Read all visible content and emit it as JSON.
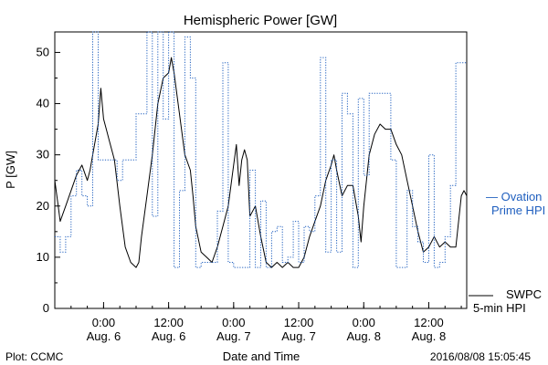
{
  "chart_data": {
    "type": "line",
    "title": "Hemispheric Power [GW]",
    "ylabel": "P [GW]",
    "xlabel": "Date and Time",
    "ylim": [
      0,
      54
    ],
    "yticks": [
      0,
      10,
      20,
      30,
      40,
      50
    ],
    "xlim": [
      "2016-08-05T15:00",
      "2016-08-08T19:00"
    ],
    "xticks": [
      {
        "at": "2016-08-06T00:00",
        "time": "0:00",
        "date": "Aug. 6"
      },
      {
        "at": "2016-08-06T12:00",
        "time": "12:00",
        "date": "Aug. 6"
      },
      {
        "at": "2016-08-07T00:00",
        "time": "0:00",
        "date": "Aug. 7"
      },
      {
        "at": "2016-08-07T12:00",
        "time": "12:00",
        "date": "Aug. 7"
      },
      {
        "at": "2016-08-08T00:00",
        "time": "0:00",
        "date": "Aug. 8"
      },
      {
        "at": "2016-08-08T12:00",
        "time": "12:00",
        "date": "Aug. 8"
      }
    ],
    "footer_left": "Plot: CCMC",
    "footer_right": "2016/08/08 15:05:45",
    "series": [
      {
        "name": "SWPC 5-min HPI",
        "legend_lines": [
          "SWPC",
          "5-min HPI"
        ],
        "color": "#000000",
        "style": "solid",
        "points": [
          [
            "2016-08-05T15:00",
            25
          ],
          [
            "2016-08-05T15:30",
            21
          ],
          [
            "2016-08-05T16:00",
            17
          ],
          [
            "2016-08-05T17:00",
            20
          ],
          [
            "2016-08-05T18:00",
            23
          ],
          [
            "2016-08-05T19:00",
            26
          ],
          [
            "2016-08-05T20:00",
            28
          ],
          [
            "2016-08-05T21:00",
            25
          ],
          [
            "2016-08-05T21:30",
            27
          ],
          [
            "2016-08-05T22:00",
            30
          ],
          [
            "2016-08-05T23:00",
            36
          ],
          [
            "2016-08-05T23:30",
            43
          ],
          [
            "2016-08-06T00:00",
            37
          ],
          [
            "2016-08-06T00:30",
            35
          ],
          [
            "2016-08-06T01:00",
            33
          ],
          [
            "2016-08-06T02:00",
            29
          ],
          [
            "2016-08-06T03:00",
            20
          ],
          [
            "2016-08-06T04:00",
            12
          ],
          [
            "2016-08-06T05:00",
            9
          ],
          [
            "2016-08-06T06:00",
            8
          ],
          [
            "2016-08-06T06:30",
            9
          ],
          [
            "2016-08-06T07:00",
            14
          ],
          [
            "2016-08-06T08:00",
            22
          ],
          [
            "2016-08-06T09:00",
            30
          ],
          [
            "2016-08-06T10:00",
            40
          ],
          [
            "2016-08-06T11:00",
            45
          ],
          [
            "2016-08-06T12:00",
            46
          ],
          [
            "2016-08-06T12:30",
            49
          ],
          [
            "2016-08-06T13:00",
            46
          ],
          [
            "2016-08-06T14:00",
            38
          ],
          [
            "2016-08-06T15:00",
            30
          ],
          [
            "2016-08-06T16:00",
            27
          ],
          [
            "2016-08-06T16:30",
            22
          ],
          [
            "2016-08-06T17:00",
            16
          ],
          [
            "2016-08-06T18:00",
            11
          ],
          [
            "2016-08-06T19:00",
            10
          ],
          [
            "2016-08-06T20:00",
            9
          ],
          [
            "2016-08-06T21:00",
            12
          ],
          [
            "2016-08-06T22:00",
            16
          ],
          [
            "2016-08-06T23:00",
            20
          ],
          [
            "2016-08-07T00:00",
            28
          ],
          [
            "2016-08-07T00:30",
            32
          ],
          [
            "2016-08-07T01:00",
            24
          ],
          [
            "2016-08-07T01:30",
            29
          ],
          [
            "2016-08-07T02:00",
            31
          ],
          [
            "2016-08-07T02:30",
            29
          ],
          [
            "2016-08-07T03:00",
            18
          ],
          [
            "2016-08-07T04:00",
            20
          ],
          [
            "2016-08-07T05:00",
            14
          ],
          [
            "2016-08-07T06:00",
            9
          ],
          [
            "2016-08-07T07:00",
            8
          ],
          [
            "2016-08-07T08:00",
            9
          ],
          [
            "2016-08-07T09:00",
            8
          ],
          [
            "2016-08-07T10:00",
            9
          ],
          [
            "2016-08-07T11:00",
            8
          ],
          [
            "2016-08-07T12:00",
            8
          ],
          [
            "2016-08-07T13:00",
            10
          ],
          [
            "2016-08-07T14:00",
            14
          ],
          [
            "2016-08-07T15:00",
            17
          ],
          [
            "2016-08-07T16:00",
            20
          ],
          [
            "2016-08-07T17:00",
            25
          ],
          [
            "2016-08-07T18:00",
            28
          ],
          [
            "2016-08-07T18:30",
            30
          ],
          [
            "2016-08-07T19:00",
            27
          ],
          [
            "2016-08-07T20:00",
            22
          ],
          [
            "2016-08-07T21:00",
            24
          ],
          [
            "2016-08-07T22:00",
            24
          ],
          [
            "2016-08-07T23:00",
            18
          ],
          [
            "2016-08-07T23:30",
            13
          ],
          [
            "2016-08-08T00:00",
            20
          ],
          [
            "2016-08-08T01:00",
            30
          ],
          [
            "2016-08-08T02:00",
            34
          ],
          [
            "2016-08-08T03:00",
            36
          ],
          [
            "2016-08-08T04:00",
            35
          ],
          [
            "2016-08-08T05:00",
            35
          ],
          [
            "2016-08-08T06:00",
            32
          ],
          [
            "2016-08-08T07:00",
            30
          ],
          [
            "2016-08-08T08:00",
            25
          ],
          [
            "2016-08-08T09:00",
            20
          ],
          [
            "2016-08-08T10:00",
            15
          ],
          [
            "2016-08-08T11:00",
            11
          ],
          [
            "2016-08-08T12:00",
            12
          ],
          [
            "2016-08-08T13:00",
            14
          ],
          [
            "2016-08-08T14:00",
            12
          ],
          [
            "2016-08-08T15:00",
            13
          ],
          [
            "2016-08-08T16:00",
            12
          ],
          [
            "2016-08-08T17:00",
            12
          ],
          [
            "2016-08-08T18:00",
            22
          ],
          [
            "2016-08-08T18:30",
            23
          ],
          [
            "2016-08-08T19:00",
            22
          ]
        ]
      },
      {
        "name": "Ovation Prime HPI",
        "legend_lines": [
          "— Ovation",
          "Prime HPI"
        ],
        "color": "#1f5fbf",
        "style": "dotted-step",
        "points": [
          [
            "2016-08-05T15:00",
            14
          ],
          [
            "2016-08-05T16:00",
            11
          ],
          [
            "2016-08-05T17:00",
            14
          ],
          [
            "2016-08-05T18:00",
            22
          ],
          [
            "2016-08-05T19:00",
            27
          ],
          [
            "2016-08-05T20:00",
            22
          ],
          [
            "2016-08-05T21:00",
            20
          ],
          [
            "2016-08-05T22:00",
            54
          ],
          [
            "2016-08-05T23:00",
            29
          ],
          [
            "2016-08-06T02:00",
            29
          ],
          [
            "2016-08-06T02:30",
            25
          ],
          [
            "2016-08-06T03:30",
            29
          ],
          [
            "2016-08-06T06:00",
            38
          ],
          [
            "2016-08-06T08:00",
            54
          ],
          [
            "2016-08-06T09:00",
            18
          ],
          [
            "2016-08-06T10:00",
            54
          ],
          [
            "2016-08-06T11:00",
            37
          ],
          [
            "2016-08-06T12:00",
            54
          ],
          [
            "2016-08-06T13:00",
            8
          ],
          [
            "2016-08-06T14:00",
            23
          ],
          [
            "2016-08-06T15:00",
            53
          ],
          [
            "2016-08-06T16:00",
            45
          ],
          [
            "2016-08-06T17:00",
            8
          ],
          [
            "2016-08-06T18:00",
            9
          ],
          [
            "2016-08-06T21:00",
            19
          ],
          [
            "2016-08-06T22:00",
            48
          ],
          [
            "2016-08-06T23:00",
            9
          ],
          [
            "2016-08-07T00:00",
            8
          ],
          [
            "2016-08-07T03:00",
            27
          ],
          [
            "2016-08-07T04:00",
            8
          ],
          [
            "2016-08-07T05:00",
            21
          ],
          [
            "2016-08-07T06:00",
            8
          ],
          [
            "2016-08-07T07:00",
            15
          ],
          [
            "2016-08-07T08:00",
            16
          ],
          [
            "2016-08-07T09:00",
            9
          ],
          [
            "2016-08-07T10:00",
            10
          ],
          [
            "2016-08-07T11:00",
            17
          ],
          [
            "2016-08-07T12:00",
            9
          ],
          [
            "2016-08-07T13:00",
            16
          ],
          [
            "2016-08-07T14:00",
            15
          ],
          [
            "2016-08-07T15:00",
            22
          ],
          [
            "2016-08-07T16:00",
            49
          ],
          [
            "2016-08-07T17:00",
            11
          ],
          [
            "2016-08-07T18:00",
            29
          ],
          [
            "2016-08-07T19:00",
            11
          ],
          [
            "2016-08-07T20:00",
            42
          ],
          [
            "2016-08-07T21:00",
            38
          ],
          [
            "2016-08-07T22:00",
            8
          ],
          [
            "2016-08-07T23:00",
            41
          ],
          [
            "2016-08-08T00:00",
            26
          ],
          [
            "2016-08-08T01:00",
            42
          ],
          [
            "2016-08-08T05:00",
            29
          ],
          [
            "2016-08-08T06:00",
            8
          ],
          [
            "2016-08-08T08:00",
            23
          ],
          [
            "2016-08-08T09:00",
            16
          ],
          [
            "2016-08-08T10:00",
            13
          ],
          [
            "2016-08-08T11:00",
            9
          ],
          [
            "2016-08-08T12:00",
            30
          ],
          [
            "2016-08-08T13:00",
            8
          ],
          [
            "2016-08-08T14:00",
            9
          ],
          [
            "2016-08-08T15:00",
            14
          ],
          [
            "2016-08-08T16:00",
            24
          ],
          [
            "2016-08-08T17:00",
            48
          ],
          [
            "2016-08-08T19:00",
            48
          ]
        ]
      }
    ]
  }
}
